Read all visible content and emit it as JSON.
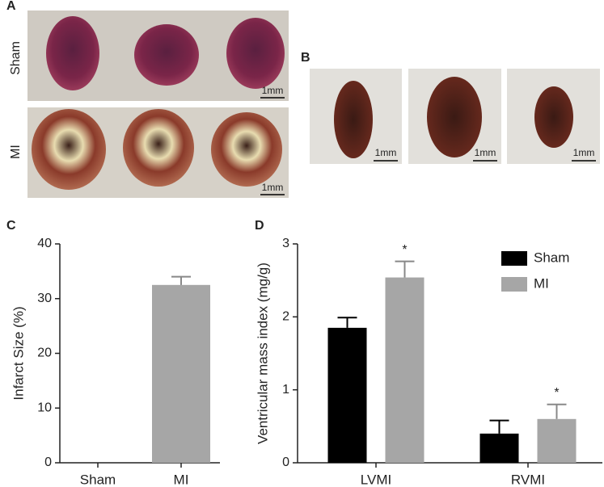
{
  "panels": {
    "a": {
      "label": "A",
      "rows": [
        {
          "name": "Sham",
          "scale": "1mm"
        },
        {
          "name": "MI",
          "scale": "1mm"
        }
      ]
    },
    "b": {
      "label": "B",
      "scales": [
        "1mm",
        "1mm",
        "1mm"
      ]
    },
    "c": {
      "label": "C"
    },
    "d": {
      "label": "D"
    }
  },
  "chart_data": [
    {
      "type": "bar",
      "ylabel": "Infarct Size (%)",
      "categories": [
        "Sham",
        "MI"
      ],
      "series": [
        {
          "color": "#a6a6a6",
          "values": [
            0,
            32.5
          ],
          "errors": [
            0,
            1.5
          ]
        }
      ],
      "ylim": [
        0,
        40
      ],
      "yticks": [
        0,
        10,
        20,
        30,
        40
      ]
    },
    {
      "type": "bar",
      "ylabel": "Ventricular mass index (mg/g)",
      "categories": [
        "LVMI",
        "RVMI"
      ],
      "series": [
        {
          "name": "Sham",
          "color": "#000000",
          "values": [
            1.85,
            0.4
          ],
          "errors": [
            0.14,
            0.18
          ]
        },
        {
          "name": "MI",
          "color": "#a6a6a6",
          "values": [
            2.54,
            0.6
          ],
          "errors": [
            0.22,
            0.2
          ],
          "significance": [
            "*",
            "*"
          ]
        }
      ],
      "ylim": [
        0,
        3
      ],
      "yticks": [
        0,
        1,
        2,
        3
      ],
      "legend": "upper right"
    }
  ]
}
